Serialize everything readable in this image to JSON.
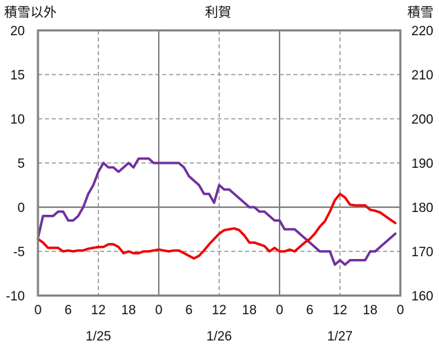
{
  "chart_data": {
    "type": "line",
    "title": "利賀",
    "ylabel_left": "積雪以外",
    "ylabel_right": "積雪",
    "ylim_left": [
      -10,
      20
    ],
    "ylim_right": [
      160,
      220
    ],
    "yticks_left": [
      "20",
      "15",
      "10",
      "5",
      "0",
      "-5",
      "-10"
    ],
    "yticks_right": [
      "220",
      "210",
      "200",
      "190",
      "180",
      "170",
      "160"
    ],
    "x_range_hours": [
      0,
      72
    ],
    "x_tick_labels": [
      "0",
      "6",
      "12",
      "18",
      "0",
      "6",
      "12",
      "18",
      "0",
      "6",
      "12",
      "18",
      "0"
    ],
    "date_labels": [
      {
        "label": "1/25",
        "hour": 12
      },
      {
        "label": "1/26",
        "hour": 36
      },
      {
        "label": "1/27",
        "hour": 60
      }
    ],
    "grid": true,
    "series": [
      {
        "color": "#7030a0",
        "axis": "left",
        "points": [
          [
            0,
            -3.5
          ],
          [
            1,
            -1
          ],
          [
            3,
            -1
          ],
          [
            4,
            -0.5
          ],
          [
            5,
            -0.5
          ],
          [
            6,
            -1.5
          ],
          [
            7,
            -1.5
          ],
          [
            8,
            -1
          ],
          [
            9,
            0
          ],
          [
            10,
            1.5
          ],
          [
            11,
            2.5
          ],
          [
            12,
            4
          ],
          [
            13,
            5
          ],
          [
            14,
            4.5
          ],
          [
            15,
            4.5
          ],
          [
            16,
            4
          ],
          [
            17,
            4.5
          ],
          [
            18,
            5
          ],
          [
            19,
            4.5
          ],
          [
            20,
            5.5
          ],
          [
            21,
            5.5
          ],
          [
            22,
            5.5
          ],
          [
            23,
            5
          ],
          [
            24,
            5
          ],
          [
            25,
            5
          ],
          [
            26,
            5
          ],
          [
            27,
            5
          ],
          [
            28,
            5
          ],
          [
            29,
            4.5
          ],
          [
            30,
            3.5
          ],
          [
            31,
            3
          ],
          [
            32,
            2.5
          ],
          [
            33,
            1.5
          ],
          [
            34,
            1.5
          ],
          [
            35,
            0.5
          ],
          [
            36,
            2.5
          ],
          [
            37,
            2
          ],
          [
            38,
            2
          ],
          [
            39,
            1.5
          ],
          [
            40,
            1
          ],
          [
            41,
            0.5
          ],
          [
            42,
            0
          ],
          [
            43,
            0
          ],
          [
            44,
            -0.5
          ],
          [
            45,
            -0.5
          ],
          [
            46,
            -1
          ],
          [
            47,
            -1.5
          ],
          [
            48,
            -1.5
          ],
          [
            49,
            -2.5
          ],
          [
            50,
            -2.5
          ],
          [
            51,
            -2.5
          ],
          [
            52,
            -3
          ],
          [
            53,
            -3.5
          ],
          [
            54,
            -4
          ],
          [
            55,
            -4.5
          ],
          [
            56,
            -5
          ],
          [
            57,
            -5
          ],
          [
            58,
            -5
          ],
          [
            59,
            -6.5
          ],
          [
            60,
            -6
          ],
          [
            61,
            -6.5
          ],
          [
            62,
            -6
          ],
          [
            63,
            -6
          ],
          [
            64,
            -6
          ],
          [
            65,
            -6
          ],
          [
            66,
            -5
          ],
          [
            67,
            -5
          ],
          [
            68,
            -4.5
          ],
          [
            69,
            -4
          ],
          [
            70,
            -3.5
          ],
          [
            71,
            -3
          ]
        ]
      },
      {
        "color": "#ee0000",
        "axis": "left",
        "points": [
          [
            0,
            -3.6
          ],
          [
            1,
            -4
          ],
          [
            2,
            -4.6
          ],
          [
            3,
            -4.6
          ],
          [
            4,
            -4.6
          ],
          [
            5,
            -5
          ],
          [
            6,
            -4.9
          ],
          [
            7,
            -5
          ],
          [
            8,
            -4.9
          ],
          [
            9,
            -4.9
          ],
          [
            10,
            -4.7
          ],
          [
            11,
            -4.6
          ],
          [
            12,
            -4.5
          ],
          [
            13,
            -4.5
          ],
          [
            14,
            -4.2
          ],
          [
            15,
            -4.2
          ],
          [
            16,
            -4.5
          ],
          [
            17,
            -5.2
          ],
          [
            18,
            -5
          ],
          [
            19,
            -5.2
          ],
          [
            20,
            -5.2
          ],
          [
            21,
            -5
          ],
          [
            22,
            -5
          ],
          [
            23,
            -4.9
          ],
          [
            24,
            -4.8
          ],
          [
            25,
            -4.9
          ],
          [
            26,
            -5
          ],
          [
            27,
            -4.9
          ],
          [
            28,
            -4.9
          ],
          [
            29,
            -5.2
          ],
          [
            30,
            -5.5
          ],
          [
            31,
            -5.8
          ],
          [
            32,
            -5.5
          ],
          [
            33,
            -4.9
          ],
          [
            34,
            -4.2
          ],
          [
            35,
            -3.6
          ],
          [
            36,
            -3
          ],
          [
            37,
            -2.6
          ],
          [
            38,
            -2.5
          ],
          [
            39,
            -2.4
          ],
          [
            40,
            -2.6
          ],
          [
            41,
            -3.2
          ],
          [
            42,
            -4
          ],
          [
            43,
            -4
          ],
          [
            44,
            -4.2
          ],
          [
            45,
            -4.4
          ],
          [
            46,
            -5
          ],
          [
            47,
            -4.6
          ],
          [
            48,
            -5
          ],
          [
            49,
            -5
          ],
          [
            50,
            -4.8
          ],
          [
            51,
            -5
          ],
          [
            52,
            -4.5
          ],
          [
            53,
            -4
          ],
          [
            54,
            -3.6
          ],
          [
            55,
            -3
          ],
          [
            56,
            -2.2
          ],
          [
            57,
            -1.6
          ],
          [
            58,
            -0.5
          ],
          [
            59,
            0.8
          ],
          [
            60,
            1.5
          ],
          [
            61,
            1.1
          ],
          [
            62,
            0.3
          ],
          [
            63,
            0.2
          ],
          [
            64,
            0.2
          ],
          [
            65,
            0.2
          ],
          [
            66,
            -0.3
          ],
          [
            67,
            -0.4
          ],
          [
            68,
            -0.6
          ],
          [
            69,
            -1
          ],
          [
            70,
            -1.4
          ],
          [
            71,
            -1.8
          ]
        ]
      }
    ]
  }
}
